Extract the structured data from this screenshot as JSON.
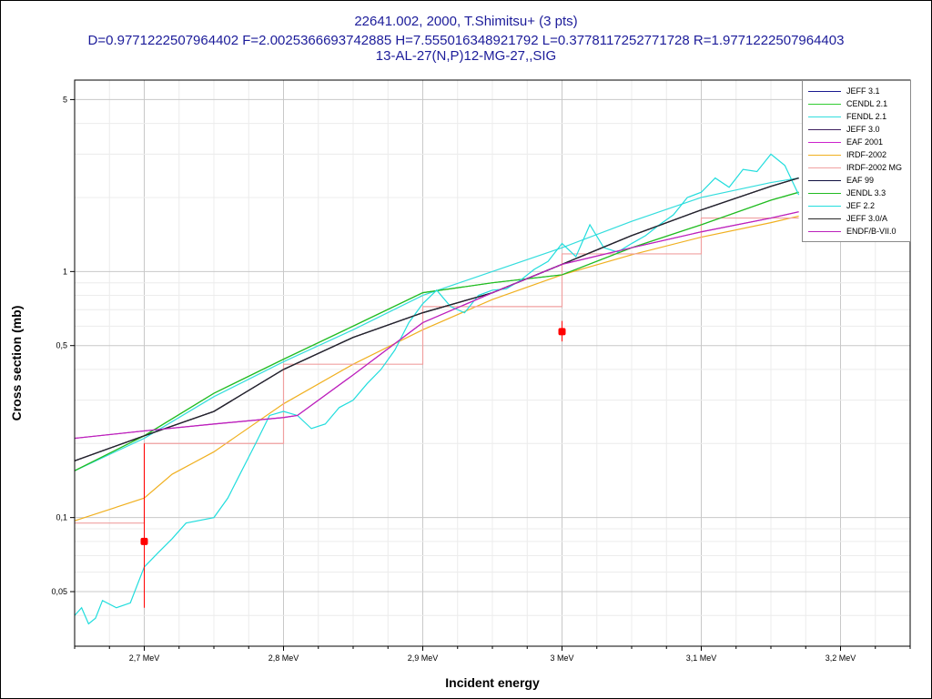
{
  "title": {
    "line1": "22641.002, 2000, T.Shimitsu+ (3 pts)",
    "line2": "D=0.9771222507964402 F=2.0025366693742885 H=7.555016348921792 L=0.3778117252771728 R=1.9771222507964403",
    "line3": "13-AL-27(N,P)12-MG-27,,SIG"
  },
  "chart_data": {
    "type": "line",
    "xlabel": "Incident energy",
    "ylabel": "Cross section (mb)",
    "xlim": [
      2.65,
      3.25
    ],
    "ylim": [
      0.03,
      6
    ],
    "yscale": "log",
    "grid": true,
    "legend_position": "top-right",
    "x_ticks": [
      {
        "value": 2.7,
        "label": "2,7 MeV"
      },
      {
        "value": 2.8,
        "label": "2,8 MeV"
      },
      {
        "value": 2.9,
        "label": "2,9 MeV"
      },
      {
        "value": 3.0,
        "label": "3 MeV"
      },
      {
        "value": 3.1,
        "label": "3,1 MeV"
      },
      {
        "value": 3.2,
        "label": "3,2 MeV"
      }
    ],
    "y_ticks": [
      {
        "value": 0.05,
        "label": "0,05"
      },
      {
        "value": 0.1,
        "label": "0,1"
      },
      {
        "value": 0.5,
        "label": "0,5"
      },
      {
        "value": 1,
        "label": "1"
      },
      {
        "value": 5,
        "label": "5"
      }
    ],
    "series": [
      {
        "name": "JEFF 3.1",
        "color": "#1a1a90",
        "style": "line",
        "x": [
          2.65,
          2.7,
          2.75,
          2.8,
          2.85,
          2.9,
          2.95,
          3.0,
          3.05,
          3.1,
          3.15,
          3.17
        ],
        "y": [
          0.17,
          0.215,
          0.27,
          0.4,
          0.54,
          0.68,
          0.82,
          1.07,
          1.4,
          1.78,
          2.22,
          2.4
        ]
      },
      {
        "name": "CENDL 2.1",
        "color": "#33cc33",
        "style": "line",
        "x": [
          2.65,
          2.7,
          2.75,
          2.8,
          2.85,
          2.9,
          2.95,
          3.0,
          3.05,
          3.1,
          3.15,
          3.17
        ],
        "y": [
          0.155,
          0.215,
          0.32,
          0.44,
          0.6,
          0.82,
          0.9,
          0.97,
          1.25,
          1.55,
          1.95,
          2.1
        ]
      },
      {
        "name": "FENDL 2.1",
        "color": "#33dddd",
        "style": "line",
        "x": [
          2.65,
          2.7,
          2.75,
          2.8,
          2.85,
          2.9,
          2.95,
          3.0,
          3.05,
          3.1,
          3.15,
          3.17
        ],
        "y": [
          0.155,
          0.21,
          0.31,
          0.43,
          0.58,
          0.8,
          1.0,
          1.25,
          1.6,
          2.0,
          2.3,
          2.4
        ]
      },
      {
        "name": "JEFF 3.0",
        "color": "#402060",
        "style": "line",
        "x": [
          2.65,
          2.7,
          2.75,
          2.8,
          2.85,
          2.9,
          2.95,
          3.0,
          3.05,
          3.1,
          3.15,
          3.17
        ],
        "y": [
          0.17,
          0.215,
          0.27,
          0.4,
          0.54,
          0.68,
          0.82,
          1.07,
          1.4,
          1.78,
          2.22,
          2.4
        ]
      },
      {
        "name": "EAF 2001",
        "color": "#cc22cc",
        "style": "line",
        "x": [
          2.65,
          2.7,
          2.75,
          2.8,
          2.81,
          2.85,
          2.9,
          2.95,
          3.0,
          3.05,
          3.1,
          3.15,
          3.17
        ],
        "y": [
          0.21,
          0.225,
          0.24,
          0.255,
          0.26,
          0.38,
          0.62,
          0.82,
          1.07,
          1.25,
          1.45,
          1.65,
          1.75
        ]
      },
      {
        "name": "IRDF-2002",
        "color": "#f0b020",
        "style": "line",
        "x": [
          2.65,
          2.7,
          2.72,
          2.75,
          2.8,
          2.85,
          2.9,
          2.95,
          3.0,
          3.05,
          3.1,
          3.15,
          3.17
        ],
        "y": [
          0.097,
          0.12,
          0.15,
          0.185,
          0.29,
          0.42,
          0.58,
          0.77,
          0.97,
          1.17,
          1.38,
          1.58,
          1.68
        ]
      },
      {
        "name": "IRDF-2002 MG",
        "color": "#f0a0a0",
        "style": "step",
        "x": [
          2.65,
          2.7,
          2.8,
          2.9,
          3.0,
          3.1,
          3.17
        ],
        "y": [
          0.095,
          0.2,
          0.42,
          0.72,
          1.18,
          1.65,
          1.65
        ]
      },
      {
        "name": "EAF 99",
        "color": "#101040",
        "style": "line",
        "x": [
          2.65,
          2.7,
          2.75,
          2.8,
          2.85,
          2.9,
          2.95,
          3.0,
          3.05,
          3.1,
          3.15,
          3.17
        ],
        "y": [
          0.17,
          0.215,
          0.27,
          0.4,
          0.54,
          0.68,
          0.82,
          1.07,
          1.4,
          1.78,
          2.22,
          2.4
        ]
      },
      {
        "name": "JENDL 3.3",
        "color": "#22bb22",
        "style": "line",
        "x": [
          2.65,
          2.7,
          2.75,
          2.8,
          2.85,
          2.9,
          2.95,
          3.0,
          3.05,
          3.1,
          3.15,
          3.17
        ],
        "y": [
          0.155,
          0.215,
          0.32,
          0.44,
          0.6,
          0.82,
          0.9,
          0.97,
          1.25,
          1.55,
          1.95,
          2.1
        ]
      },
      {
        "name": "JEF 2.2",
        "color": "#22dddd",
        "style": "line",
        "x": [
          2.65,
          2.655,
          2.66,
          2.665,
          2.67,
          2.68,
          2.69,
          2.7,
          2.71,
          2.72,
          2.73,
          2.75,
          2.76,
          2.77,
          2.78,
          2.79,
          2.8,
          2.81,
          2.82,
          2.83,
          2.84,
          2.85,
          2.86,
          2.87,
          2.88,
          2.89,
          2.9,
          2.91,
          2.92,
          2.93,
          2.94,
          2.95,
          2.96,
          2.97,
          2.98,
          2.99,
          3.0,
          3.01,
          3.02,
          3.03,
          3.04,
          3.05,
          3.06,
          3.07,
          3.08,
          3.09,
          3.1,
          3.11,
          3.12,
          3.13,
          3.14,
          3.15,
          3.16,
          3.17
        ],
        "y": [
          0.04,
          0.043,
          0.037,
          0.039,
          0.046,
          0.043,
          0.045,
          0.063,
          0.072,
          0.082,
          0.095,
          0.1,
          0.12,
          0.155,
          0.2,
          0.26,
          0.27,
          0.26,
          0.23,
          0.24,
          0.28,
          0.3,
          0.35,
          0.4,
          0.48,
          0.62,
          0.74,
          0.84,
          0.72,
          0.68,
          0.8,
          0.84,
          0.85,
          0.92,
          1.02,
          1.1,
          1.3,
          1.15,
          1.55,
          1.25,
          1.2,
          1.3,
          1.4,
          1.55,
          1.7,
          2.0,
          2.1,
          2.4,
          2.2,
          2.6,
          2.55,
          3.0,
          2.7,
          2.05
        ]
      },
      {
        "name": "JEFF 3.0/A",
        "color": "#282828",
        "style": "line",
        "x": [
          2.65,
          2.7,
          2.75,
          2.8,
          2.85,
          2.9,
          2.95,
          3.0,
          3.05,
          3.1,
          3.15,
          3.17
        ],
        "y": [
          0.17,
          0.215,
          0.27,
          0.4,
          0.54,
          0.68,
          0.82,
          1.07,
          1.4,
          1.78,
          2.22,
          2.4
        ]
      },
      {
        "name": "ENDF/B-VII.0",
        "color": "#bb22bb",
        "style": "line",
        "x": [
          2.65,
          2.7,
          2.75,
          2.8,
          2.81,
          2.85,
          2.9,
          2.95,
          3.0,
          3.05,
          3.1,
          3.15,
          3.17
        ],
        "y": [
          0.21,
          0.225,
          0.24,
          0.255,
          0.26,
          0.38,
          0.62,
          0.82,
          1.07,
          1.25,
          1.45,
          1.65,
          1.75
        ]
      }
    ],
    "experimental_points": {
      "color": "#ff0000",
      "points": [
        {
          "x": 2.7,
          "y": 0.08,
          "y_low": 0.043,
          "y_high": 0.2
        },
        {
          "x": 3.0,
          "y": 0.57,
          "y_low": 0.52,
          "y_high": 0.63
        }
      ]
    }
  }
}
